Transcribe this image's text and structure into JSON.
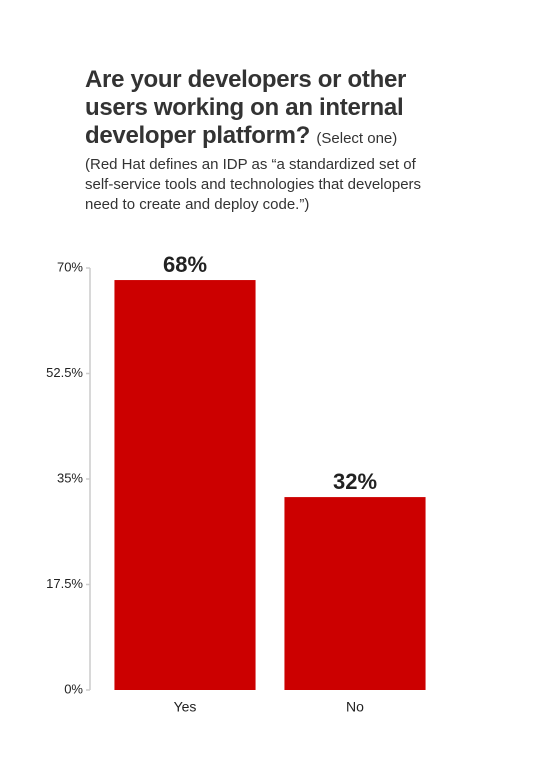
{
  "chart_data": {
    "type": "bar",
    "title": "Are your developers or other users working on an internal developer platform?",
    "title_note": "(Select one)",
    "subtitle": "(Red Hat defines an IDP as “a standardized set of self-service tools and technologies that developers need to create and deploy code.”)",
    "categories": [
      "Yes",
      "No"
    ],
    "values": [
      68,
      32
    ],
    "value_labels": [
      "68%",
      "32%"
    ],
    "color": "#cc0000",
    "ylim": [
      0,
      70
    ],
    "yticks": [
      {
        "value": 0,
        "label": "0%"
      },
      {
        "value": 17.5,
        "label": "17.5%"
      },
      {
        "value": 35,
        "label": "35%"
      },
      {
        "value": 52.5,
        "label": "52.5%"
      },
      {
        "value": 70,
        "label": "70%"
      }
    ],
    "grid": false
  }
}
